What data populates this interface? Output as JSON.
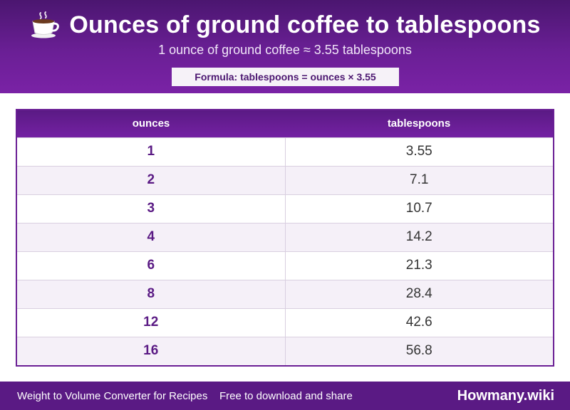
{
  "header": {
    "icon": "coffee-cup-icon",
    "title": "Ounces of ground coffee to tablespoons",
    "subtitle": "1 ounce of ground coffee ≈ 3.55 tablespoons",
    "formula": "Formula: tablespoons = ounces × 3.55"
  },
  "table": {
    "columns": [
      "ounces",
      "tablespoons"
    ],
    "rows": [
      [
        "1",
        "3.55"
      ],
      [
        "2",
        "7.1"
      ],
      [
        "3",
        "10.7"
      ],
      [
        "4",
        "14.2"
      ],
      [
        "6",
        "21.3"
      ],
      [
        "8",
        "28.4"
      ],
      [
        "12",
        "42.6"
      ],
      [
        "16",
        "56.8"
      ]
    ]
  },
  "footer": {
    "left": "Weight to Volume Converter for Recipes",
    "middle": "Free to download and share",
    "brand": "Howmany.wiki"
  },
  "colors": {
    "primary": "#6a1f95",
    "dark": "#4b1670",
    "row_alt": "#f5f0f8"
  }
}
